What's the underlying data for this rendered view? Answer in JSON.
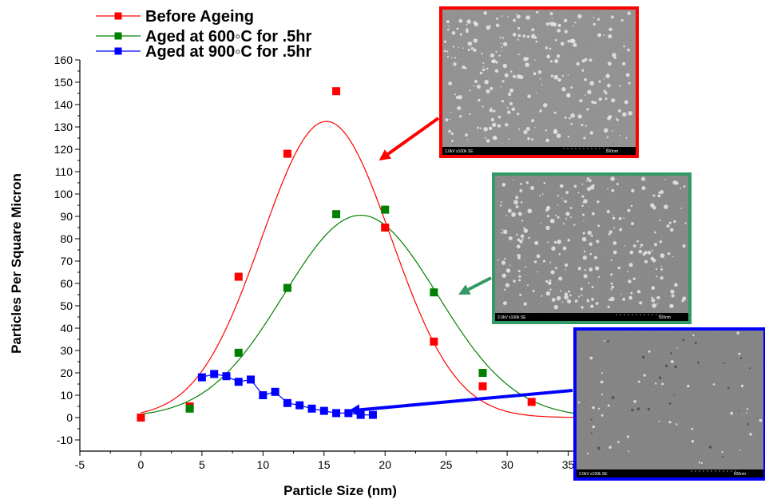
{
  "chart_data": {
    "type": "scatter",
    "title": "",
    "xlabel": "Particle Size (nm)",
    "ylabel": "Particles Per Square Micron",
    "xlim": [
      -5,
      40
    ],
    "ylim": [
      -15,
      160
    ],
    "x_ticks": [
      -5,
      0,
      5,
      10,
      15,
      20,
      25,
      30,
      35
    ],
    "y_ticks": [
      -10,
      0,
      10,
      20,
      30,
      40,
      50,
      60,
      70,
      80,
      90,
      100,
      110,
      120,
      130,
      140,
      150,
      160
    ],
    "grid": false,
    "legend_position": "top-left",
    "series": [
      {
        "name": "Before Ageing",
        "color": "#ff0000",
        "marker": "square",
        "line": "gaussian fit",
        "x": [
          0,
          4,
          8,
          12,
          16,
          20,
          24,
          28,
          32,
          36
        ],
        "y": [
          0,
          5,
          63,
          118,
          146,
          85,
          34,
          14,
          7,
          2
        ],
        "fit": {
          "peak_x": 15.2,
          "peak_y": 132.5,
          "sigma": 5.3
        }
      },
      {
        "name": "Aged at 600◦C for .5hr",
        "color": "#008000",
        "marker": "square",
        "line": "gaussian fit",
        "x": [
          4,
          8,
          12,
          16,
          20,
          24,
          28
        ],
        "y": [
          4,
          29,
          58,
          91,
          93,
          56,
          20
        ],
        "fit": {
          "peak_x": 18.0,
          "peak_y": 90.5,
          "sigma": 6.3
        }
      },
      {
        "name": "Aged at 900◦C for .5hr",
        "color": "#0000ff",
        "marker": "square",
        "line": "connected",
        "x": [
          5,
          6,
          7,
          8,
          9,
          10,
          11,
          12,
          13,
          14,
          15,
          16,
          17,
          18,
          19
        ],
        "y": [
          18,
          19.5,
          18.5,
          16,
          17,
          10,
          11.5,
          6.5,
          5.5,
          4,
          3,
          2,
          2,
          1.2,
          1.2
        ]
      }
    ],
    "insets": [
      {
        "name": "sem-image-before-ageing",
        "border_color": "#ff0000",
        "caption_left": "2.0kV x100k SE",
        "caption_right": "500nm",
        "points_to": [
          19.5,
          115
        ]
      },
      {
        "name": "sem-image-aged-600",
        "border_color": "#339966",
        "caption_left": "2.0kV x100k SE",
        "caption_right": "500nm",
        "points_to": [
          26,
          55
        ]
      },
      {
        "name": "sem-image-aged-900",
        "border_color": "#0000ff",
        "caption_left": "2.0kV x100k SE",
        "caption_right": "500nm",
        "points_to": [
          17,
          3
        ]
      }
    ]
  }
}
